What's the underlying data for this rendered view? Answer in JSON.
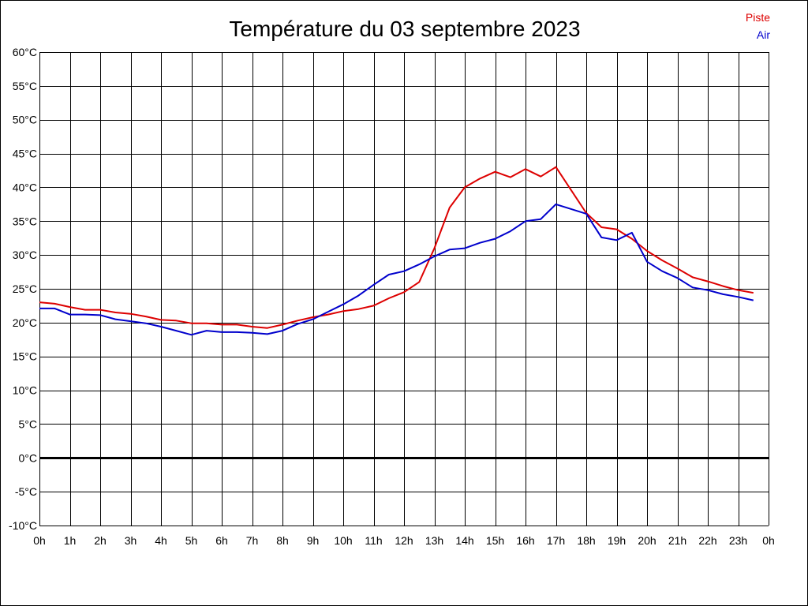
{
  "chart_data": {
    "type": "line",
    "title": "Température du 03 septembre 2023",
    "xlabel": "",
    "ylabel": "",
    "x_ticks": [
      "0h",
      "1h",
      "2h",
      "3h",
      "4h",
      "5h",
      "6h",
      "7h",
      "8h",
      "9h",
      "10h",
      "11h",
      "12h",
      "13h",
      "14h",
      "15h",
      "16h",
      "17h",
      "18h",
      "19h",
      "20h",
      "21h",
      "22h",
      "23h",
      "0h"
    ],
    "y_ticks": [
      "60°C",
      "55°C",
      "50°C",
      "45°C",
      "40°C",
      "35°C",
      "30°C",
      "25°C",
      "20°C",
      "15°C",
      "10°C",
      "5°C",
      "0°C",
      "-5°C",
      "-10°C"
    ],
    "xlim": [
      0,
      24
    ],
    "ylim": [
      -10,
      60
    ],
    "grid": true,
    "legend_position": "top-right",
    "x": [
      0,
      0.5,
      1,
      1.5,
      2,
      2.5,
      3,
      3.5,
      4,
      4.5,
      5,
      5.5,
      6,
      6.5,
      7,
      7.5,
      8,
      8.5,
      9,
      9.5,
      10,
      10.5,
      11,
      11.5,
      12,
      12.5,
      13,
      13.5,
      14,
      14.5,
      15,
      15.5,
      16,
      16.5,
      17,
      17.5,
      18,
      18.5,
      19,
      19.5,
      20,
      20.5,
      21,
      21.5,
      22,
      22.5,
      23,
      23.5
    ],
    "series": [
      {
        "name": "Piste",
        "color": "#dd0000",
        "values": [
          23.0,
          22.8,
          22.3,
          21.9,
          21.9,
          21.5,
          21.3,
          20.9,
          20.4,
          20.3,
          19.9,
          19.9,
          19.7,
          19.7,
          19.4,
          19.2,
          19.7,
          20.3,
          20.8,
          21.2,
          21.7,
          22.0,
          22.5,
          23.6,
          24.5,
          26.0,
          31.0,
          37.0,
          40.0,
          41.3,
          42.3,
          41.5,
          42.7,
          41.6,
          43.0,
          39.6,
          36.2,
          34.1,
          33.8,
          32.4,
          30.6,
          29.2,
          28.0,
          26.7,
          26.1,
          25.4,
          24.8,
          24.4
        ]
      },
      {
        "name": "Air",
        "color": "#0000cc",
        "values": [
          22.1,
          22.1,
          21.2,
          21.2,
          21.1,
          20.5,
          20.2,
          19.9,
          19.4,
          18.8,
          18.2,
          18.8,
          18.6,
          18.6,
          18.5,
          18.3,
          18.8,
          19.8,
          20.5,
          21.6,
          22.7,
          24.0,
          25.6,
          27.1,
          27.6,
          28.6,
          29.8,
          30.8,
          31.0,
          31.8,
          32.4,
          33.5,
          35.0,
          35.3,
          37.5,
          36.8,
          36.1,
          32.6,
          32.2,
          33.3,
          29.0,
          27.6,
          26.6,
          25.2,
          24.8,
          24.2,
          23.8,
          23.3
        ]
      }
    ]
  }
}
